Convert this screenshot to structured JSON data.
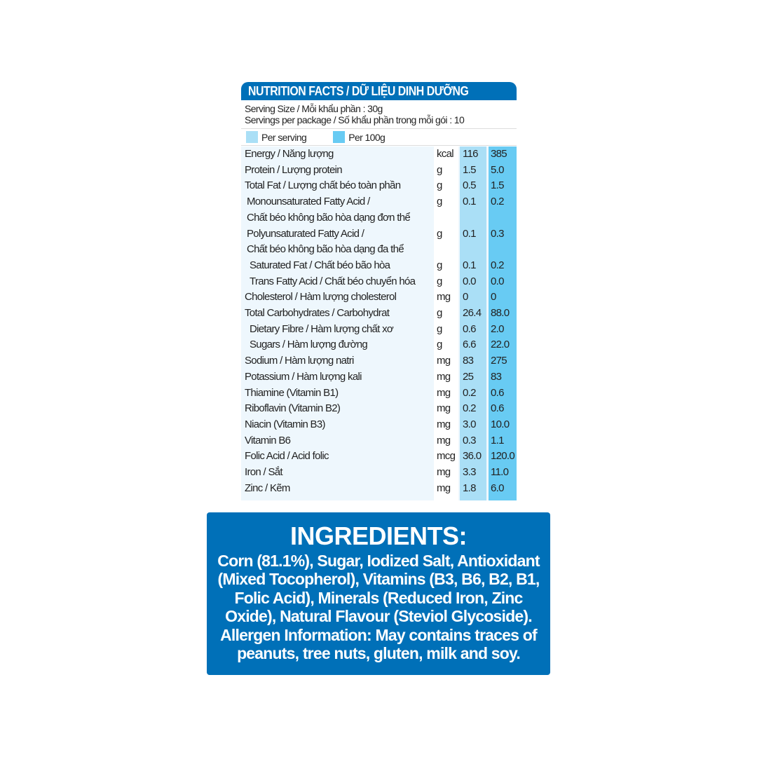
{
  "nutrition": {
    "title": "NUTRITION FACTS / DỮ LIỆU DINH DƯỠNG",
    "serving_size": "Serving Size / Mỗi khẩu phần : 30g",
    "servings_per_package": "Servings per package / Số khẩu phần trong mỗi gói : 10",
    "legend": {
      "per_serving": "Per serving",
      "per_100g": "Per 100g"
    },
    "colors": {
      "header": "#0070b8",
      "per_serving": "#aadff6",
      "per_100g": "#68cbf3"
    },
    "rows": [
      {
        "label": "Energy / Năng lượng",
        "unit": "kcal",
        "serving": "116",
        "per100": "385"
      },
      {
        "label": "Protein / Lượng protein",
        "unit": "g",
        "serving": "1.5",
        "per100": "5.0"
      },
      {
        "label": "Total Fat / Lượng chất béo toàn phần",
        "unit": "g",
        "serving": "0.5",
        "per100": "1.5"
      },
      {
        "label": "Monounsaturated Fatty Acid /",
        "label2": "Chất béo không bão hòa dạng đơn thể",
        "unit": "g",
        "serving": "0.1",
        "per100": "0.2"
      },
      {
        "label": "Polyunsaturated Fatty Acid /",
        "label2": "Chất béo không bão hòa dạng đa thể",
        "unit": "g",
        "serving": "0.1",
        "per100": "0.3"
      },
      {
        "label": "Saturated Fat / Chất béo bão hòa",
        "unit": "g",
        "serving": "0.1",
        "per100": "0.2"
      },
      {
        "label": "Trans Fatty Acid / Chất béo chuyển hóa",
        "unit": "g",
        "serving": "0.0",
        "per100": "0.0"
      },
      {
        "label": "Cholesterol / Hàm lượng cholesterol",
        "unit": "mg",
        "serving": "0",
        "per100": "0"
      },
      {
        "label": "Total Carbohydrates / Carbohydrat",
        "unit": "g",
        "serving": "26.4",
        "per100": "88.0"
      },
      {
        "label": "Dietary Fibre / Hàm lượng chất xơ",
        "unit": "g",
        "serving": "0.6",
        "per100": "2.0"
      },
      {
        "label": "Sugars / Hàm lượng đường",
        "unit": "g",
        "serving": "6.6",
        "per100": "22.0"
      },
      {
        "label": "Sodium / Hàm lượng natri",
        "unit": "mg",
        "serving": "83",
        "per100": "275"
      },
      {
        "label": "Potassium / Hàm lượng kali",
        "unit": "mg",
        "serving": "25",
        "per100": "83"
      },
      {
        "label": "Thiamine (Vitamin B1)",
        "unit": "mg",
        "serving": "0.2",
        "per100": "0.6"
      },
      {
        "label": "Riboflavin (Vitamin B2)",
        "unit": "mg",
        "serving": "0.2",
        "per100": "0.6"
      },
      {
        "label": "Niacin (Vitamin B3)",
        "unit": "mg",
        "serving": "3.0",
        "per100": "10.0"
      },
      {
        "label": "Vitamin B6",
        "unit": "mg",
        "serving": "0.3",
        "per100": "1.1"
      },
      {
        "label": "Folic Acid / Acid folic",
        "unit": "mcg",
        "serving": "36.0",
        "per100": "120.0"
      },
      {
        "label": "Iron / Sắt",
        "unit": "mg",
        "serving": "3.3",
        "per100": "11.0"
      },
      {
        "label": "Zinc / Kẽm",
        "unit": "mg",
        "serving": "1.8",
        "per100": "6.0"
      }
    ]
  },
  "ingredients": {
    "title": "INGREDIENTS:",
    "text": "Corn (81.1%), Sugar, Iodized Salt, Antioxidant (Mixed Tocopherol), Vitamins (B3, B6, B2, B1, Folic Acid), Minerals (Reduced Iron, Zinc Oxide), Natural Flavour (Steviol Glycoside). Allergen Information: May contains traces of peanuts, tree nuts, gluten, milk and soy."
  }
}
